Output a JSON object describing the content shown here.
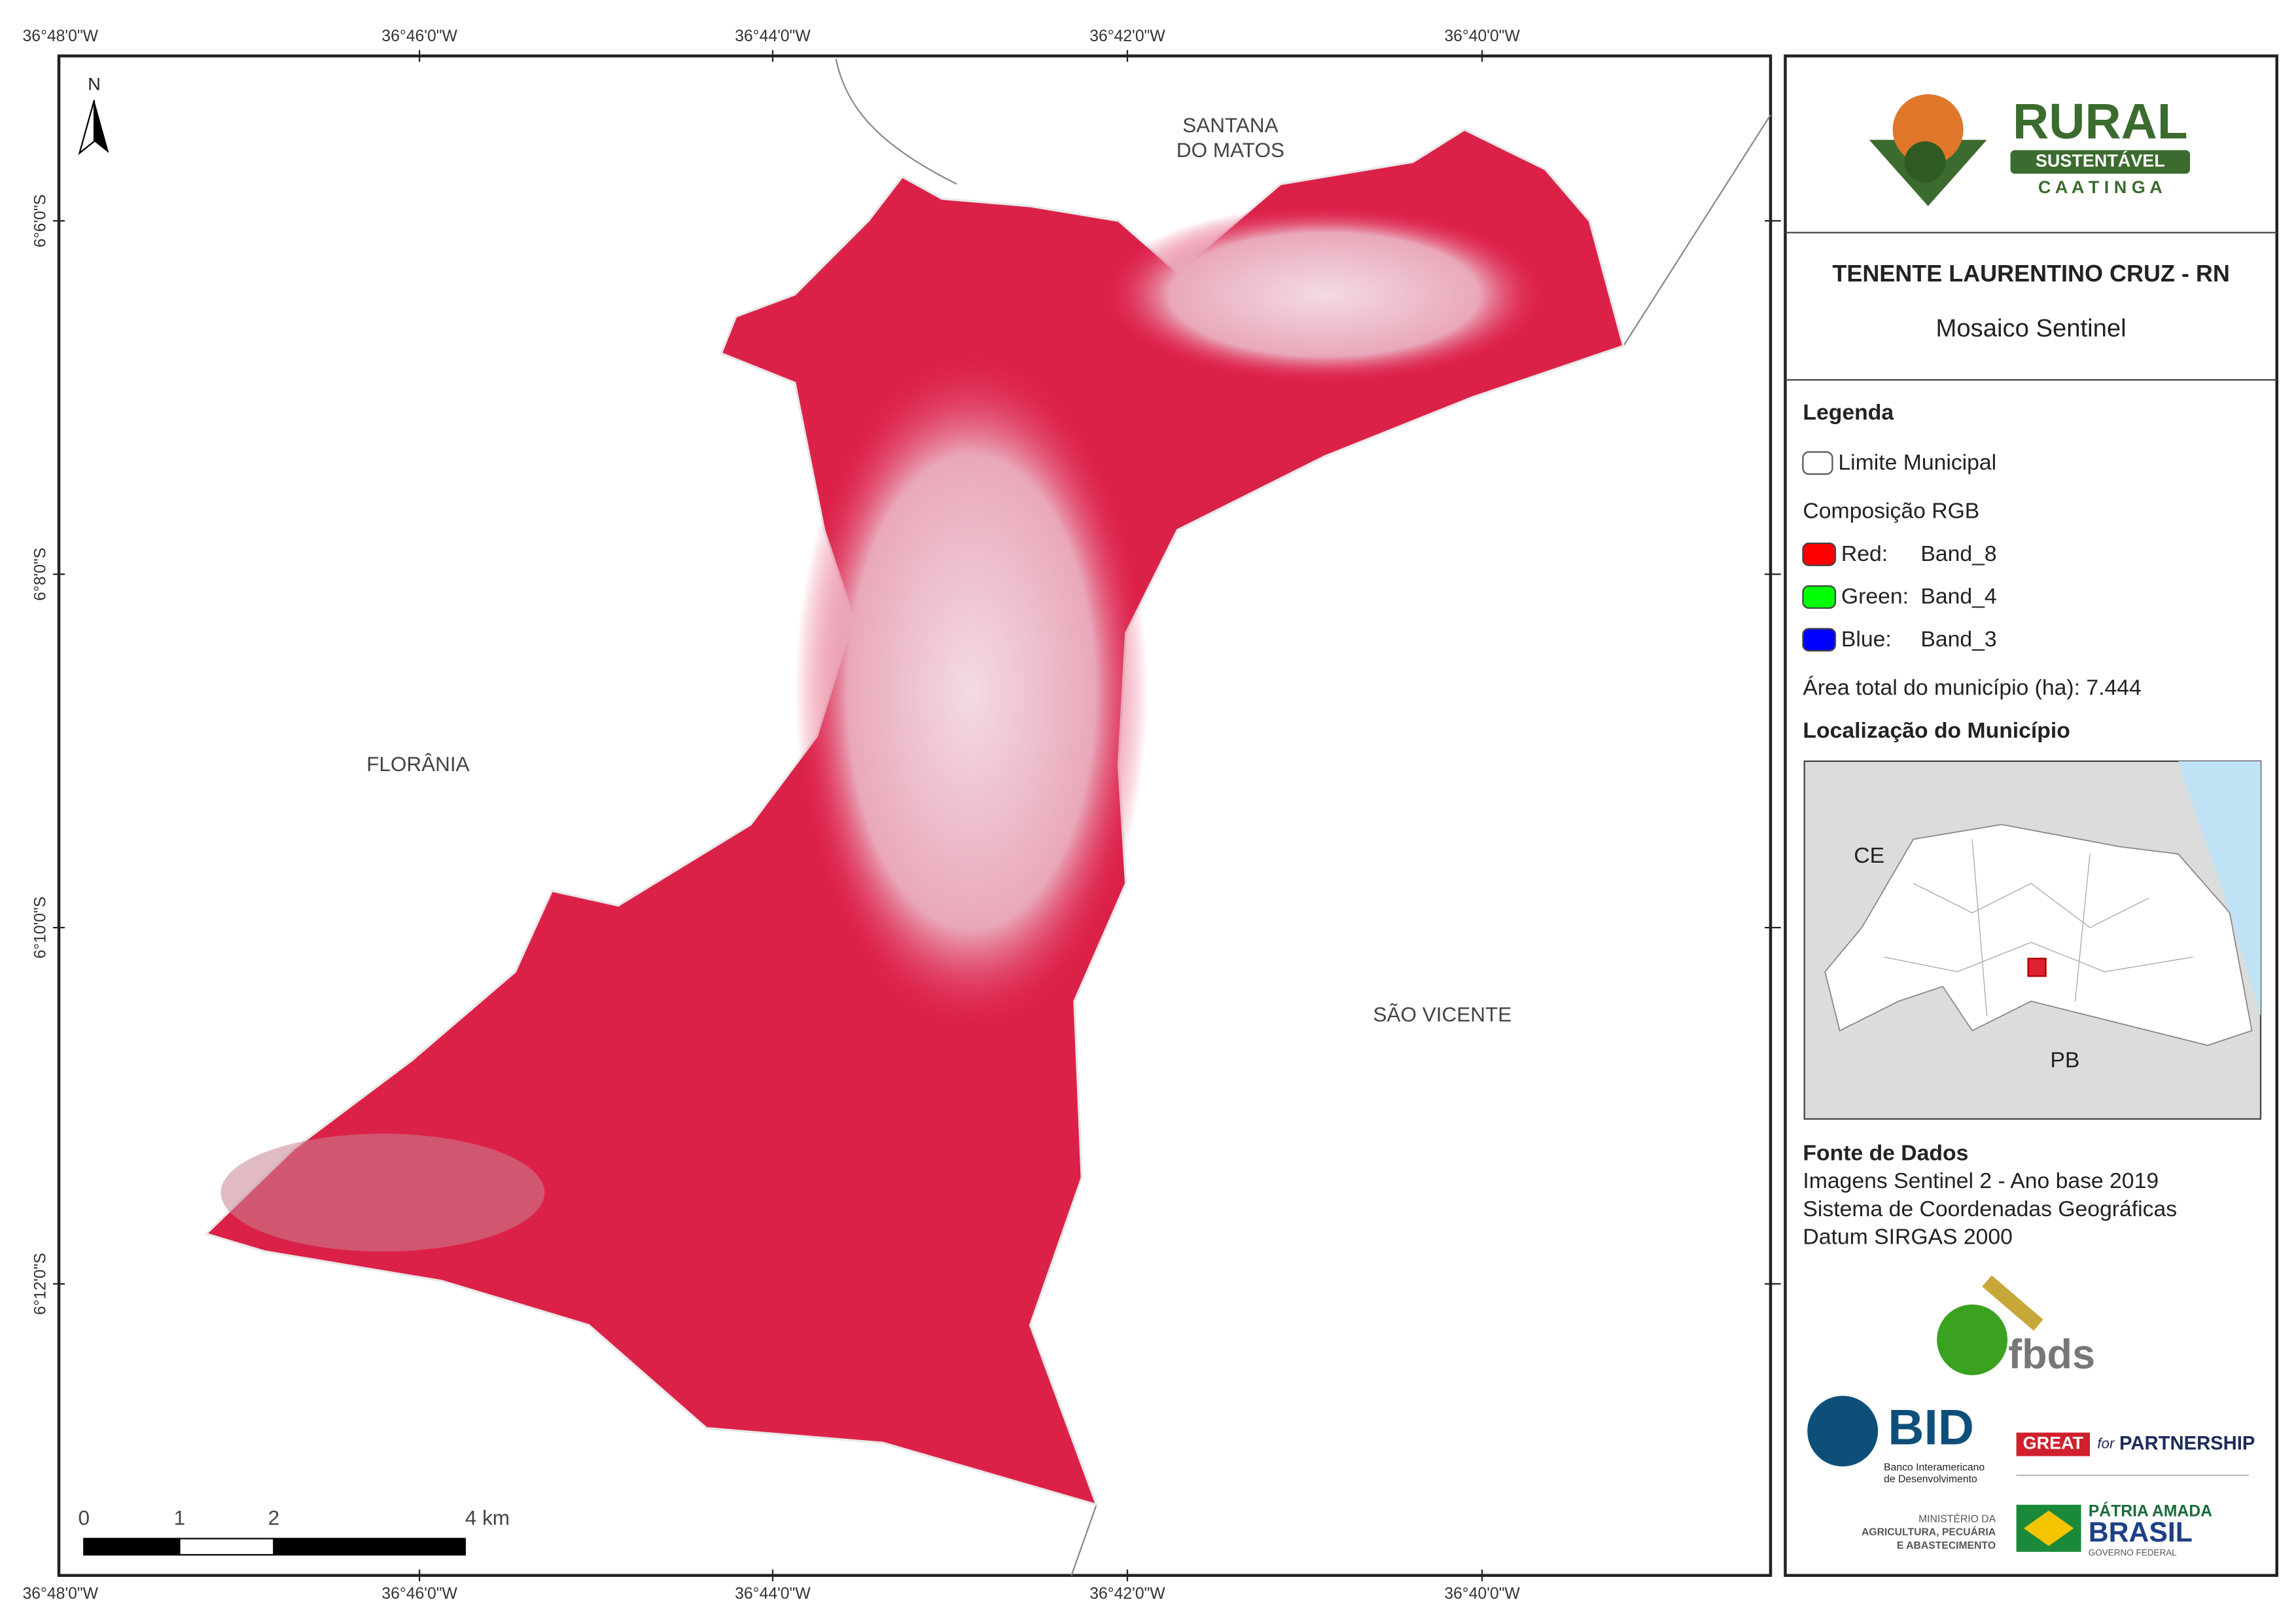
{
  "map": {
    "north": "N",
    "lon_labels": [
      "36°48'0\"W",
      "36°46'0\"W",
      "36°44'0\"W",
      "36°42'0\"W",
      "36°40'0\"W"
    ],
    "lat_labels": [
      "6°6'0\"S",
      "6°8'0\"S",
      "6°10'0\"S",
      "6°12'0\"S"
    ],
    "places": {
      "santana": [
        "SANTANA",
        "DO MATOS"
      ],
      "florania": "FLORÂNIA",
      "sao_vicente": "SÃO VICENTE"
    },
    "scale_bar": [
      "0",
      "1",
      "2",
      "4 km"
    ]
  },
  "panel": {
    "logo": {
      "rural": "RURAL",
      "sustentavel": "SUSTENTÁVEL",
      "caatinga": "C A A T I N G A"
    },
    "title": "TENENTE LAURENTINO CRUZ - RN",
    "subtitle": "Mosaico Sentinel",
    "legend": {
      "heading": "Legenda",
      "boundary": "Limite Municipal",
      "rgb_heading": "Composição RGB",
      "bands": [
        {
          "channel": "Red:",
          "band": "Band_8",
          "color": "#ff0000"
        },
        {
          "channel": "Green:",
          "band": "Band_4",
          "color": "#00ff00"
        },
        {
          "channel": "Blue:",
          "band": "Band_3",
          "color": "#0000ff"
        }
      ]
    },
    "area": "Área total do município (ha): 7.444",
    "location_heading": "Localização do Município",
    "inset_labels": {
      "ce": "CE",
      "pb": "PB"
    },
    "sources": {
      "heading": "Fonte de Dados",
      "lines": [
        "Imagens Sentinel 2 - Ano base 2019",
        "Sistema de Coordenadas Geográficas",
        "Datum SIRGAS 2000"
      ]
    },
    "logos": {
      "fbds": "fbds",
      "bid": "BID",
      "bid_name": [
        "Banco Interamericano",
        "de Desenvolvimento"
      ],
      "great": "GREAT",
      "for": "for",
      "partnership": "PARTNERSHIP",
      "ministry": [
        "MINISTÉRIO DA",
        "AGRICULTURA, PECUÁRIA",
        "E ABASTECIMENTO"
      ],
      "patria": "PÁTRIA AMADA",
      "brasil": "BRASIL",
      "governo": "GOVERNO FEDERAL"
    }
  }
}
